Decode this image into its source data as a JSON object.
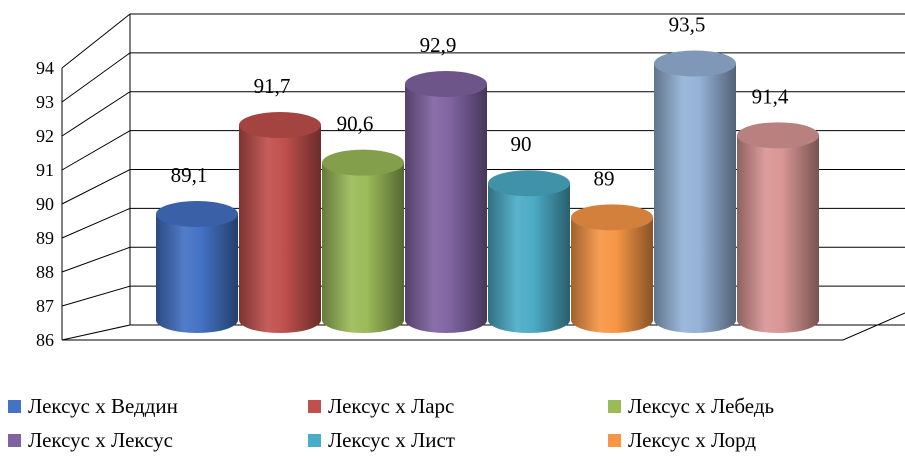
{
  "chart_data": {
    "type": "bar",
    "style": "3d-cylinder",
    "categories": [
      "Лексус х Веддин",
      "Лексус х Ларс",
      "Лексус х Лебедь",
      "Лексус х Лексус",
      "Лексус х Лист",
      "Лексус х Лорд",
      "",
      ""
    ],
    "values": [
      89.1,
      91.7,
      90.6,
      92.9,
      90,
      89,
      93.5,
      91.4
    ],
    "value_labels": [
      "89,1",
      "91,7",
      "90,6",
      "92,9",
      "90",
      "89",
      "93,5",
      "91,4"
    ],
    "colors": [
      "#4472C4",
      "#C0504D",
      "#9BBB59",
      "#8064A2",
      "#4BACC6",
      "#F79646",
      "#95B3D7",
      "#D99694"
    ],
    "y_ticks": [
      "86",
      "87",
      "88",
      "89",
      "90",
      "91",
      "92",
      "93",
      "94"
    ],
    "ylim": [
      86,
      94
    ],
    "grid": true,
    "legend_position": "bottom",
    "legend": [
      "Лексус х Веддин",
      "Лексус х Ларс",
      "Лексус х Лебедь",
      "Лексус х Лексус",
      "Лексус х Лист",
      "Лексус х Лорд"
    ],
    "title": "",
    "xlabel": "",
    "ylabel": ""
  }
}
